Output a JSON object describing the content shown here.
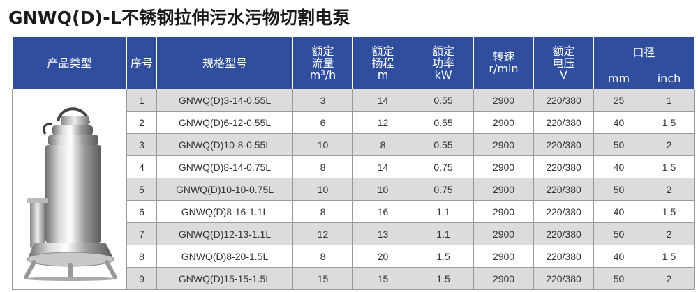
{
  "title": "GNWQ(D)-L不锈钢拉伸污水污物切割电泵",
  "header": {
    "product_type": "产品类型",
    "index": "序号",
    "model": "规格型号",
    "flow": [
      "额定",
      "流量",
      "m³/h"
    ],
    "head": [
      "额定",
      "扬程",
      "m"
    ],
    "power": [
      "额定",
      "功率",
      "kW"
    ],
    "speed": [
      "转速",
      "r/min"
    ],
    "voltage": [
      "额定",
      "电压",
      "V"
    ],
    "diameter": "口径",
    "diameter_mm": "mm",
    "diameter_inch": "inch"
  },
  "rows": [
    {
      "no": "1",
      "model": "GNWQ(D)3-14-0.55L",
      "flow": "3",
      "head": "14",
      "power": "0.55",
      "speed": "2900",
      "voltage": "220/380",
      "mm": "25",
      "inch": "1"
    },
    {
      "no": "2",
      "model": "GNWQ(D)6-12-0.55L",
      "flow": "6",
      "head": "12",
      "power": "0.55",
      "speed": "2900",
      "voltage": "220/380",
      "mm": "40",
      "inch": "1.5"
    },
    {
      "no": "3",
      "model": "GNWQ(D)10-8-0.55L",
      "flow": "10",
      "head": "8",
      "power": "0.55",
      "speed": "2900",
      "voltage": "220/380",
      "mm": "50",
      "inch": "2"
    },
    {
      "no": "4",
      "model": "GNWQ(D)8-14-0.75L",
      "flow": "8",
      "head": "14",
      "power": "0.75",
      "speed": "2900",
      "voltage": "220/380",
      "mm": "40",
      "inch": "1.5"
    },
    {
      "no": "5",
      "model": "GNWQ(D)10-10-0.75L",
      "flow": "10",
      "head": "10",
      "power": "0.75",
      "speed": "2900",
      "voltage": "220/380",
      "mm": "50",
      "inch": "2"
    },
    {
      "no": "6",
      "model": "GNWQ(D)8-16-1.1L",
      "flow": "8",
      "head": "16",
      "power": "1.1",
      "speed": "2900",
      "voltage": "220/380",
      "mm": "40",
      "inch": "1.5"
    },
    {
      "no": "7",
      "model": "GNWQ(D)12-13-1.1L",
      "flow": "12",
      "head": "13",
      "power": "1.1",
      "speed": "2900",
      "voltage": "220/380",
      "mm": "50",
      "inch": "2"
    },
    {
      "no": "8",
      "model": "GNWQ(D)8-20-1.5L",
      "flow": "8",
      "head": "20",
      "power": "1.5",
      "speed": "2900",
      "voltage": "220/380",
      "mm": "40",
      "inch": "1.5"
    },
    {
      "no": "9",
      "model": "GNWQ(D)15-15-1.5L",
      "flow": "15",
      "head": "15",
      "power": "1.5",
      "speed": "2900",
      "voltage": "220/380",
      "mm": "50",
      "inch": "2"
    }
  ]
}
